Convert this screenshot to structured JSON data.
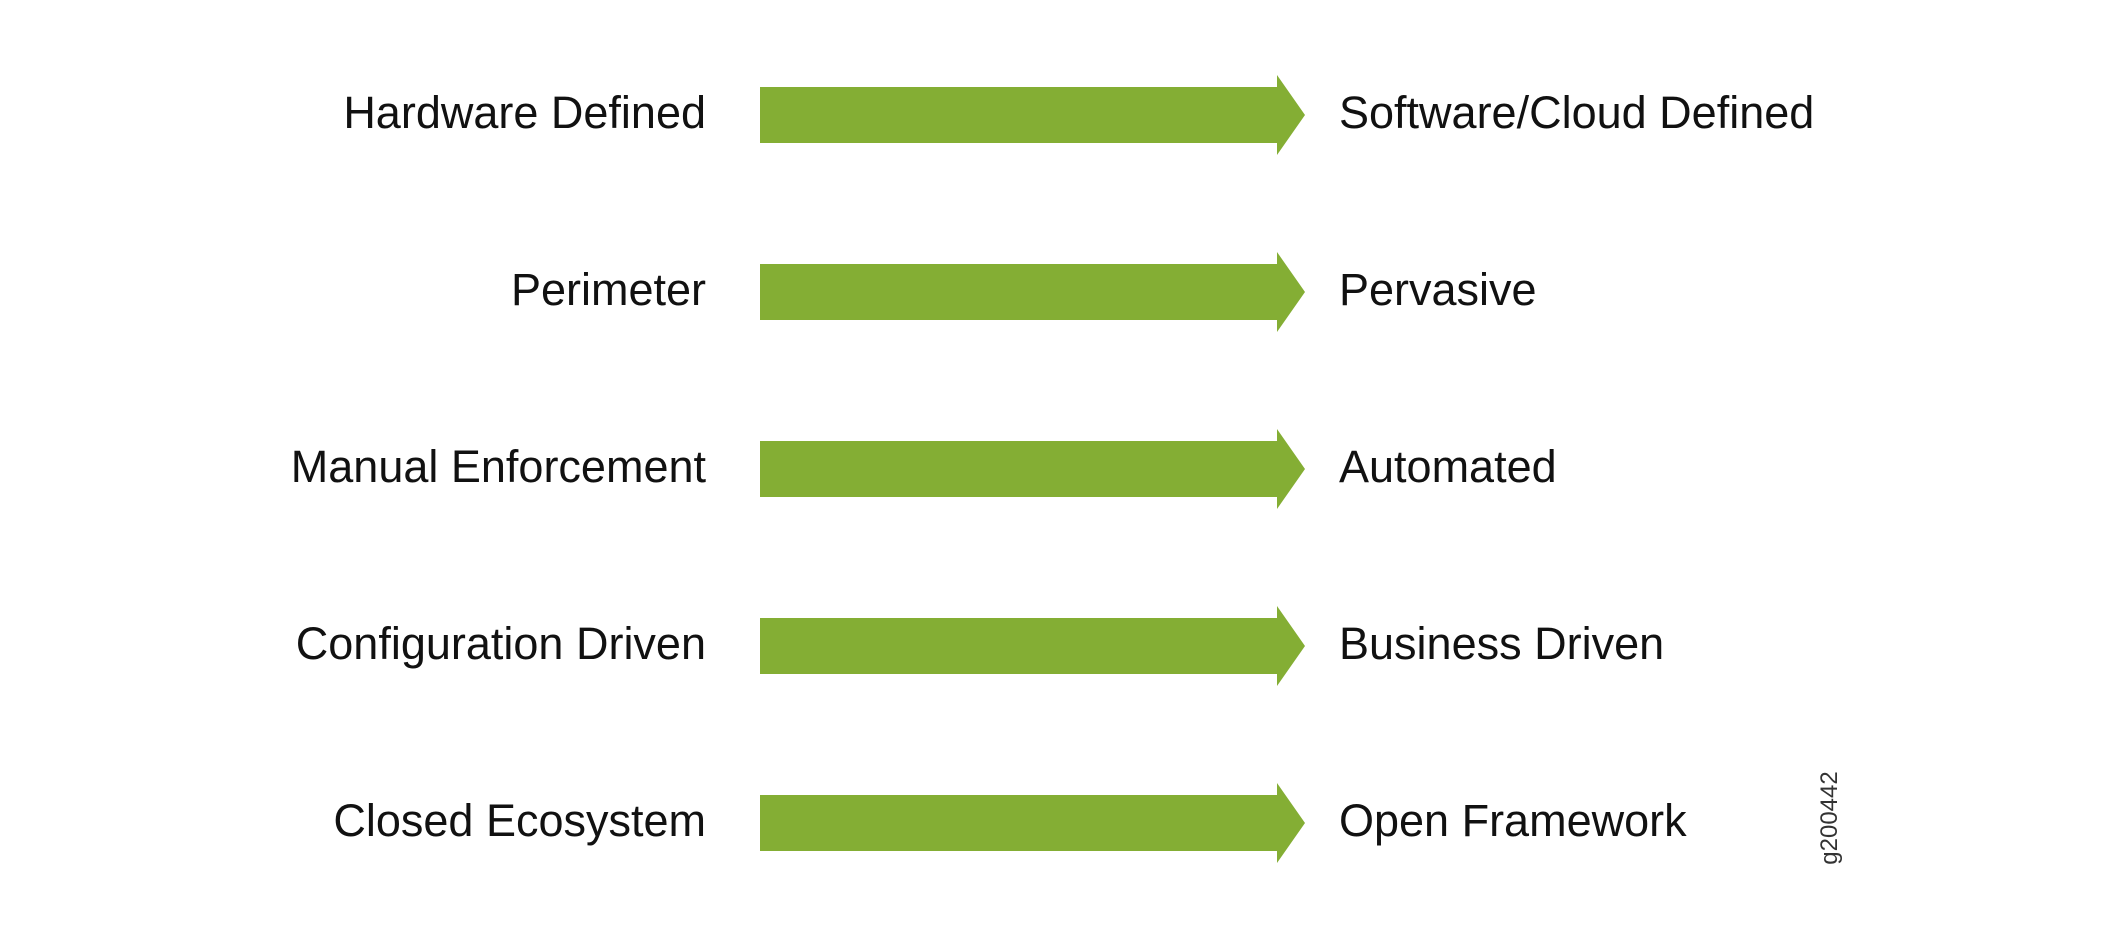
{
  "colors": {
    "arrow": "#84AE34",
    "text": "#111111"
  },
  "transitions": [
    {
      "from": "Hardware Defined",
      "to": "Software/Cloud Defined"
    },
    {
      "from": "Perimeter",
      "to": "Pervasive"
    },
    {
      "from": "Manual Enforcement",
      "to": "Automated"
    },
    {
      "from": "Configuration Driven",
      "to": "Business Driven"
    },
    {
      "from": "Closed Ecosystem",
      "to": "Open Framework"
    }
  ],
  "figure_id": "g200442"
}
